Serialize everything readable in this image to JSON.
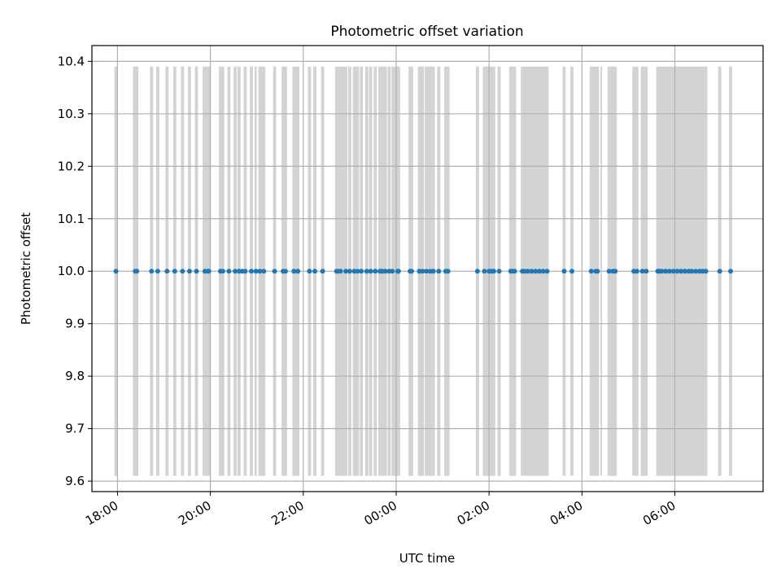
{
  "chart_data": {
    "type": "scatter",
    "title": "Photometric offset variation",
    "xlabel": "UTC time",
    "ylabel": "Photometric offset",
    "x_axis_type": "time",
    "x_start": "2023-01-01T17:00",
    "x_end": "2023-01-02T08:00",
    "xlim_hours": [
      17.45,
      31.9
    ],
    "ylim": [
      9.58,
      10.43
    ],
    "x_ticks": [
      {
        "label": "18:00",
        "hour": 18
      },
      {
        "label": "20:00",
        "hour": 20
      },
      {
        "label": "22:00",
        "hour": 22
      },
      {
        "label": "00:00",
        "hour": 24
      },
      {
        "label": "02:00",
        "hour": 26
      },
      {
        "label": "04:00",
        "hour": 28
      },
      {
        "label": "06:00",
        "hour": 30
      }
    ],
    "y_ticks": [
      "9.6",
      "9.7",
      "9.8",
      "9.9",
      "10.0",
      "10.1",
      "10.2",
      "10.3",
      "10.4"
    ],
    "grid": true,
    "series": [
      {
        "color": "#1f77b4",
        "x": [
          "17:58",
          "18:23",
          "18:25",
          "18:44",
          "18:52",
          "19:04",
          "19:14",
          "19:24",
          "19:33",
          "19:42",
          "19:53",
          "19:57",
          "19:58",
          "20:13",
          "20:16",
          "20:24",
          "20:32",
          "20:37",
          "20:41",
          "20:45",
          "20:53",
          "20:59",
          "21:04",
          "21:09",
          "21:23",
          "21:34",
          "21:37",
          "21:48",
          "21:53",
          "22:08",
          "22:15",
          "22:25",
          "22:43",
          "22:45",
          "22:48",
          "22:55",
          "23:00",
          "23:06",
          "23:10",
          "23:15",
          "23:22",
          "23:27",
          "23:33",
          "23:39",
          "23:42",
          "23:46",
          "23:51",
          "23:55",
          "00:02",
          "00:03",
          "00:18",
          "00:20",
          "00:30",
          "00:34",
          "00:39",
          "00:44",
          "00:48",
          "00:55",
          "01:04",
          "01:07",
          "01:45",
          "01:54",
          "02:00",
          "02:03",
          "02:06",
          "02:13",
          "02:28",
          "02:30",
          "02:33",
          "02:43",
          "02:46",
          "02:50",
          "02:55",
          "03:00",
          "03:05",
          "03:10",
          "03:15",
          "03:37",
          "03:47",
          "04:12",
          "04:18",
          "04:20",
          "04:35",
          "04:40",
          "04:43",
          "05:07",
          "05:11",
          "05:18",
          "05:23",
          "05:38",
          "05:40",
          "05:43",
          "05:48",
          "05:53",
          "05:58",
          "06:03",
          "06:08",
          "06:13",
          "06:18",
          "06:22",
          "06:27",
          "06:32",
          "06:36",
          "06:40",
          "06:58",
          "07:12"
        ],
        "y": [
          10.0,
          10.0,
          10.0,
          10.0,
          10.0,
          10.0,
          10.0,
          10.0,
          10.0,
          10.0,
          10.0,
          10.0,
          10.0,
          10.0,
          10.0,
          10.0,
          10.0,
          10.0,
          10.0,
          10.0,
          10.0,
          10.0,
          10.0,
          10.0,
          10.0,
          10.0,
          10.0,
          10.0,
          10.0,
          10.0,
          10.0,
          10.0,
          10.0,
          10.0,
          10.0,
          10.0,
          10.0,
          10.0,
          10.0,
          10.0,
          10.0,
          10.0,
          10.0,
          10.0,
          10.0,
          10.0,
          10.0,
          10.0,
          10.0,
          10.0,
          10.0,
          10.0,
          10.0,
          10.0,
          10.0,
          10.0,
          10.0,
          10.0,
          10.0,
          10.0,
          10.0,
          10.0,
          10.0,
          10.0,
          10.0,
          10.0,
          10.0,
          10.0,
          10.0,
          10.0,
          10.0,
          10.0,
          10.0,
          10.0,
          10.0,
          10.0,
          10.0,
          10.0,
          10.0,
          10.0,
          10.0,
          10.0,
          10.0,
          10.0,
          10.0,
          10.0,
          10.0,
          10.0,
          10.0,
          10.0,
          10.0,
          10.0,
          10.0,
          10.0,
          10.0,
          10.0,
          10.0,
          10.0,
          10.0,
          10.0,
          10.0,
          10.0,
          10.0,
          10.0,
          10.0,
          10.0
        ]
      }
    ],
    "error_band": {
      "color": "#d3d3d3",
      "y_low": 9.61,
      "y_high": 10.39,
      "intervals": [
        [
          "17:56",
          "18:00"
        ],
        [
          "18:20",
          "18:27"
        ],
        [
          "18:42",
          "18:46"
        ],
        [
          "18:50",
          "18:54"
        ],
        [
          "19:02",
          "19:06"
        ],
        [
          "19:12",
          "19:16"
        ],
        [
          "19:22",
          "19:26"
        ],
        [
          "19:31",
          "19:35"
        ],
        [
          "19:40",
          "19:44"
        ],
        [
          "19:50",
          "20:00"
        ],
        [
          "20:11",
          "20:18"
        ],
        [
          "20:22",
          "20:26"
        ],
        [
          "20:30",
          "20:34"
        ],
        [
          "20:35",
          "20:39"
        ],
        [
          "20:43",
          "20:47"
        ],
        [
          "20:51",
          "20:55"
        ],
        [
          "20:57",
          "21:00"
        ],
        [
          "21:02",
          "21:11"
        ],
        [
          "21:21",
          "21:25"
        ],
        [
          "21:32",
          "21:39"
        ],
        [
          "21:46",
          "21:55"
        ],
        [
          "22:06",
          "22:10"
        ],
        [
          "22:13",
          "22:17"
        ],
        [
          "22:23",
          "22:27"
        ],
        [
          "22:41",
          "22:57"
        ],
        [
          "22:58",
          "23:02"
        ],
        [
          "23:04",
          "23:12"
        ],
        [
          "23:13",
          "23:17"
        ],
        [
          "23:20",
          "23:24"
        ],
        [
          "23:25",
          "23:29"
        ],
        [
          "23:31",
          "23:35"
        ],
        [
          "23:37",
          "23:48"
        ],
        [
          "23:49",
          "23:53"
        ],
        [
          "23:54",
          "00:05"
        ],
        [
          "00:16",
          "00:22"
        ],
        [
          "00:28",
          "00:36"
        ],
        [
          "00:37",
          "00:50"
        ],
        [
          "00:53",
          "00:57"
        ],
        [
          "01:02",
          "01:09"
        ],
        [
          "01:43",
          "01:47"
        ],
        [
          "01:52",
          "02:08"
        ],
        [
          "02:11",
          "02:15"
        ],
        [
          "02:26",
          "02:35"
        ],
        [
          "02:41",
          "03:17"
        ],
        [
          "03:35",
          "03:39"
        ],
        [
          "03:45",
          "03:49"
        ],
        [
          "04:10",
          "04:22"
        ],
        [
          "04:24",
          "04:26"
        ],
        [
          "04:33",
          "04:45"
        ],
        [
          "05:05",
          "05:13"
        ],
        [
          "05:16",
          "05:25"
        ],
        [
          "05:36",
          "06:42"
        ],
        [
          "06:56",
          "07:00"
        ],
        [
          "07:10",
          "07:14"
        ]
      ]
    }
  }
}
